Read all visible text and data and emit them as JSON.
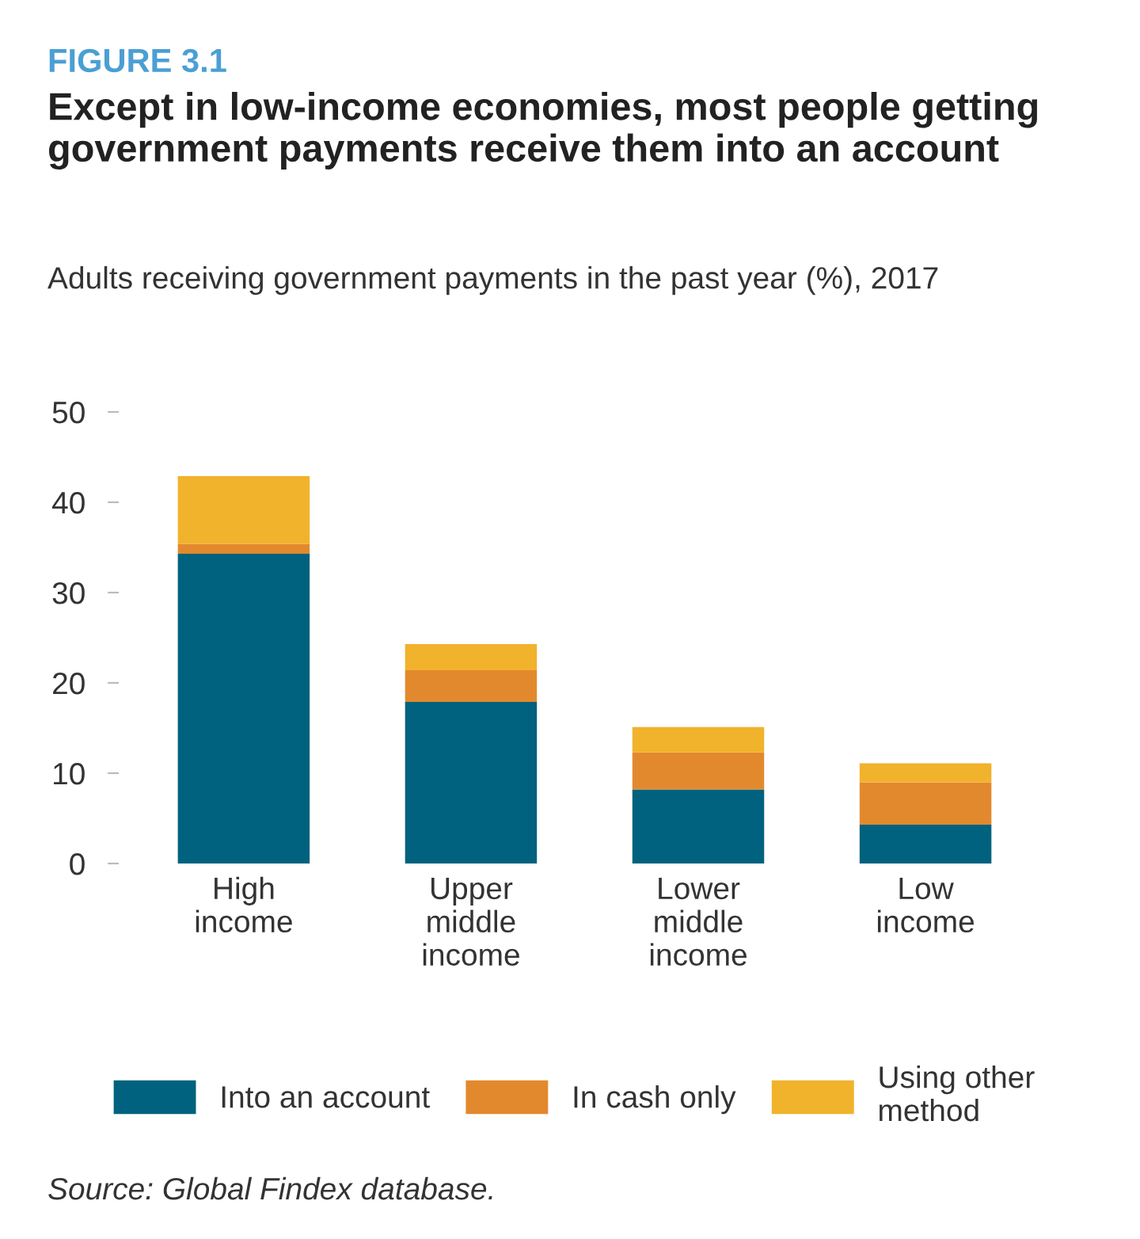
{
  "chart_data": {
    "type": "bar",
    "stacked": true,
    "title": "Except in low-income economies, most people getting government payments receive them into an account",
    "subtitle": "Adults receiving government payments in the past year (%), 2017",
    "annotations": [
      "FIGURE 3.1",
      "Source: Global Findex database."
    ],
    "categories": [
      "High\nincome",
      "Upper\nmiddle\nincome",
      "Lower\nmiddle\nincome",
      "Low\nincome"
    ],
    "series": [
      {
        "name": "Into an account",
        "color": "#00627e",
        "values": [
          34.3,
          17.9,
          8.2,
          4.3
        ]
      },
      {
        "name": "In cash only",
        "color": "#e3892d",
        "values": [
          1.1,
          3.5,
          4.1,
          4.7
        ]
      },
      {
        "name": "Using other method",
        "color": "#f1b22c",
        "values": [
          7.5,
          2.9,
          2.8,
          2.1
        ]
      }
    ],
    "ylim": [
      0,
      50
    ],
    "yticks": [
      0,
      10,
      20,
      30,
      40,
      50
    ],
    "grid": false,
    "legend": "bottom"
  }
}
